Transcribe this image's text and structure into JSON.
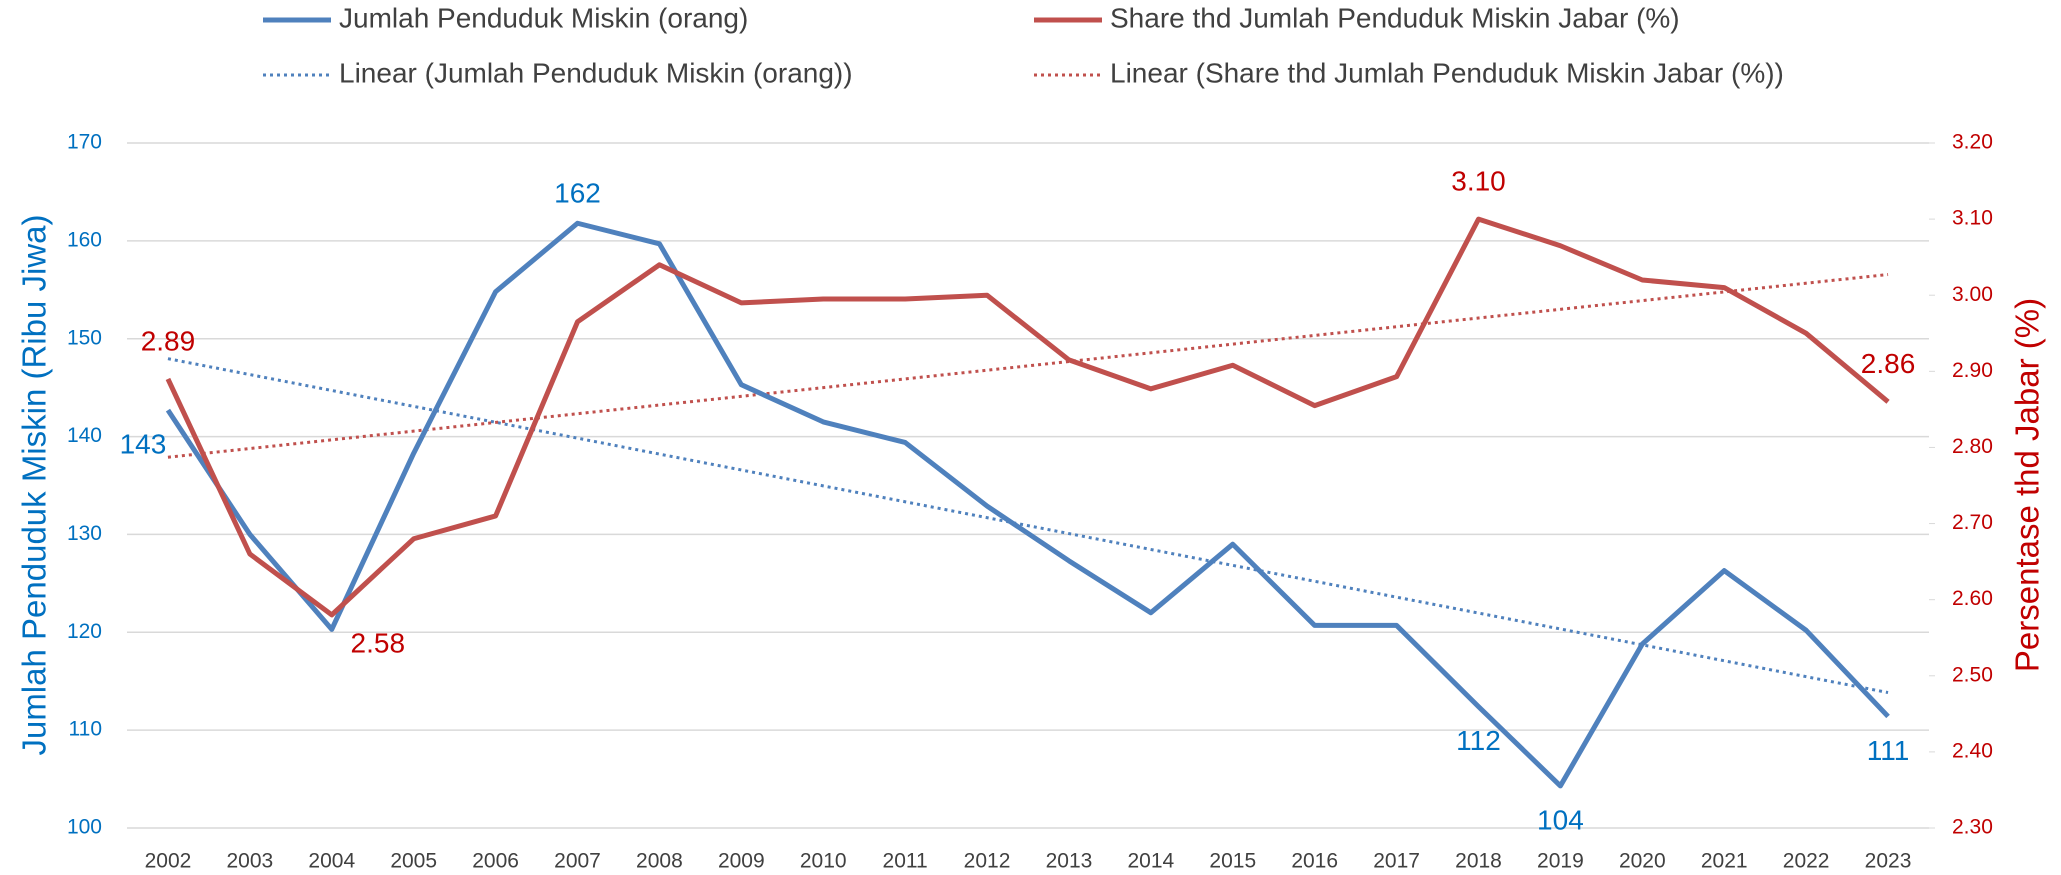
{
  "chart_data": {
    "type": "line",
    "y_label": "Jumlah Penduduk Miskin (Ribu Jiwa)",
    "y2_label": "Persentase thd Jabar (%)",
    "y_color": "#0070c0",
    "y2_color": "#c00000",
    "categories": [
      "2002",
      "2003",
      "2004",
      "2005",
      "2006",
      "2007",
      "2008",
      "2009",
      "2010",
      "2011",
      "2012",
      "2013",
      "2014",
      "2015",
      "2016",
      "2017",
      "2018",
      "2019",
      "2020",
      "2021",
      "2022",
      "2023"
    ],
    "series": [
      {
        "name": "Jumlah Penduduk Miskin (orang)",
        "color": "#4f81bd",
        "axis": "y",
        "values": [
          142.7,
          130.0,
          120.3,
          138.3,
          154.8,
          161.8,
          159.7,
          145.3,
          141.5,
          139.4,
          132.9,
          127.3,
          122.0,
          129.0,
          120.7,
          120.7,
          112.4,
          104.3,
          118.8,
          126.3,
          120.2,
          111.4
        ],
        "value_labels": [
          "143",
          null,
          null,
          null,
          null,
          "162",
          null,
          null,
          null,
          null,
          null,
          null,
          null,
          null,
          null,
          null,
          "112",
          "104",
          null,
          null,
          null,
          "111"
        ]
      },
      {
        "name": "Share thd Jumlah Penduduk Miskin Jabar (%)",
        "color": "#c0504d",
        "axis": "y2",
        "values": [
          2.89,
          2.66,
          2.58,
          2.68,
          2.71,
          2.965,
          3.04,
          2.99,
          2.995,
          2.995,
          3.0,
          2.915,
          2.877,
          2.908,
          2.855,
          2.893,
          3.1,
          3.065,
          3.02,
          3.01,
          2.95,
          2.86
        ],
        "value_labels": [
          "2.89",
          null,
          "2.58",
          null,
          null,
          null,
          null,
          null,
          null,
          null,
          null,
          null,
          null,
          null,
          null,
          null,
          "3.10",
          null,
          null,
          null,
          null,
          "2.86"
        ]
      }
    ],
    "trendlines": [
      {
        "name": "Linear (Jumlah Penduduk Miskin (orang))",
        "of_series": 0,
        "color": "#4f81bd",
        "style": "dotted"
      },
      {
        "name": "Linear (Share thd Jumlah Penduduk Miskin Jabar (%))",
        "of_series": 1,
        "color": "#c0504d",
        "style": "dotted"
      }
    ],
    "ylim": [
      100,
      170
    ],
    "yticks": [
      100,
      110,
      120,
      130,
      140,
      150,
      160,
      170
    ],
    "y2lim": [
      2.3,
      3.2
    ],
    "y2ticks": [
      {
        "value": 2.3,
        "label": "2.30"
      },
      {
        "value": 2.4,
        "label": "2.40"
      },
      {
        "value": 2.5,
        "label": "2.50"
      },
      {
        "value": 2.6,
        "label": "2.60"
      },
      {
        "value": 2.7,
        "label": "2.70"
      },
      {
        "value": 2.8,
        "label": "2.80"
      },
      {
        "value": 2.9,
        "label": "2.90"
      },
      {
        "value": 3.0,
        "label": "3.00"
      },
      {
        "value": 3.1,
        "label": "3.10"
      },
      {
        "value": 3.2,
        "label": "3.20"
      }
    ],
    "grid": true
  }
}
